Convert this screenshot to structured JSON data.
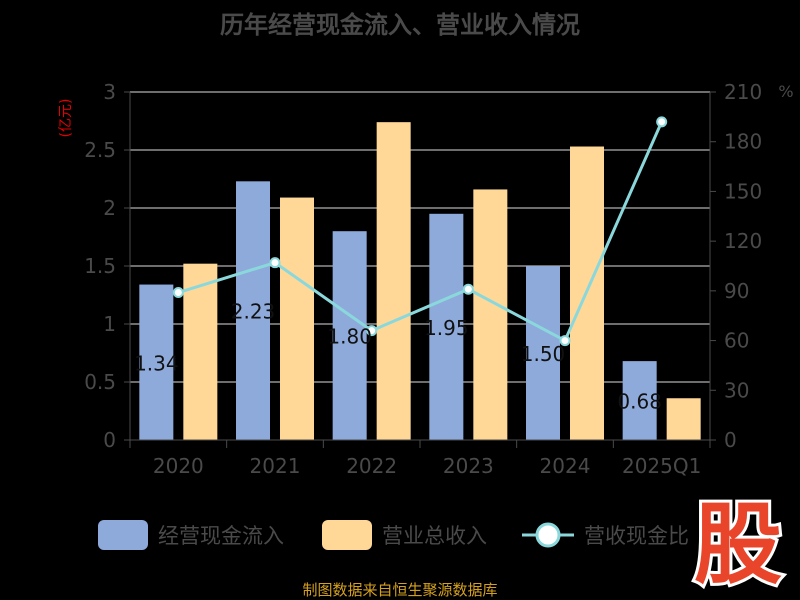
{
  "chart_data": {
    "type": "bar",
    "title": "历年经营现金流入、营业收入情况",
    "categories": [
      "2020",
      "2021",
      "2022",
      "2023",
      "2024",
      "2025Q1"
    ],
    "y_left": {
      "unit": "(亿元)",
      "range": [
        0,
        3
      ],
      "ticks": [
        "0",
        "0.5",
        "1",
        "1.5",
        "2",
        "2.5",
        "3"
      ]
    },
    "y_right": {
      "unit": "%",
      "range": [
        0,
        210
      ],
      "ticks": [
        "0",
        "30",
        "60",
        "90",
        "120",
        "150",
        "180",
        "210"
      ]
    },
    "series": [
      {
        "name": "经营现金流入",
        "kind": "bar",
        "axis": "left",
        "color": "#8eaadb",
        "values": [
          1.34,
          2.23,
          1.8,
          1.95,
          1.5,
          0.68
        ],
        "labels": [
          "1.34",
          "2.23",
          "1.80",
          "1.95",
          "1.50",
          "0.68"
        ]
      },
      {
        "name": "营业总收入",
        "kind": "bar",
        "axis": "left",
        "color": "#ffd898",
        "values": [
          1.52,
          2.09,
          2.74,
          2.16,
          2.53,
          0.36
        ]
      },
      {
        "name": "营收现金比",
        "kind": "line",
        "axis": "right",
        "color": "#8ad8dc",
        "values": [
          89,
          107,
          66,
          91,
          60,
          192
        ]
      }
    ],
    "legend": "bottom",
    "grid": true
  },
  "source": "制图数据来自恒生聚源数据库",
  "logo": "股"
}
